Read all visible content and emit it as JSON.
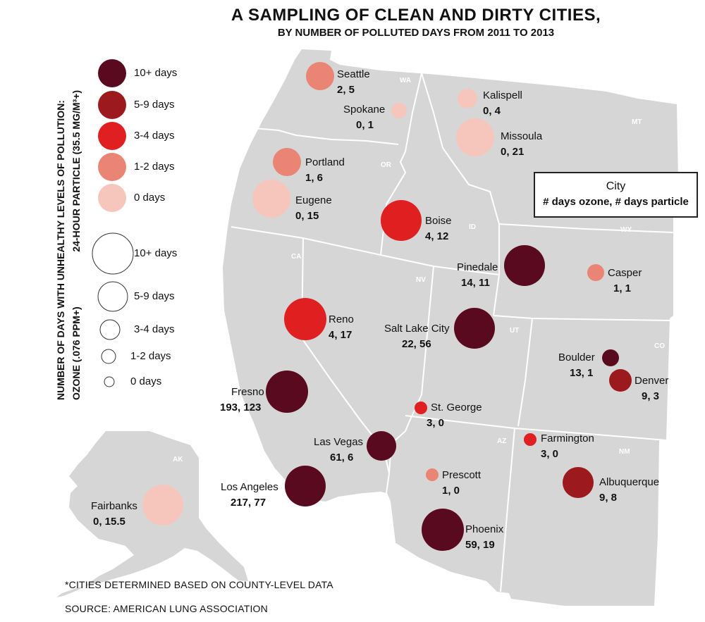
{
  "title": "A SAMPLING OF CLEAN AND DIRTY CITIES,",
  "subtitle": "BY NUMBER OF POLLUTED DAYS FROM 2011 TO 2013",
  "legend": {
    "axis_line_1": "NUMBER OF DAYS WITH UNHEALTHY LEVELS OF POLLUTION:",
    "axis_line_2": "OZONE (.076 PPM+)                    24-HOUR PARTICLE (35.5 MG/M³+)",
    "ozone": [
      {
        "label": "10+ days",
        "color": "#5a0a1e"
      },
      {
        "label": "5-9 days",
        "color": "#9c1a1e"
      },
      {
        "label": "3-4 days",
        "color": "#e02020"
      },
      {
        "label": "1-2 days",
        "color": "#ea8474"
      },
      {
        "label": "0 days",
        "color": "#f6c6bd"
      }
    ],
    "particle": [
      {
        "label": "10+ days"
      },
      {
        "label": "5-9 days"
      },
      {
        "label": "3-4 days"
      },
      {
        "label": "1-2 days"
      },
      {
        "label": "0 days"
      }
    ]
  },
  "key": {
    "city": "City",
    "days": "# days ozone, # days particle"
  },
  "states": [
    "WA",
    "MT",
    "OR",
    "ID",
    "WY",
    "CA",
    "NV",
    "UT",
    "CO",
    "AZ",
    "NM",
    "AK"
  ],
  "cities": [
    {
      "name": "Seattle",
      "values": "2, 5",
      "ozone_days": 2,
      "particle_days": 5
    },
    {
      "name": "Spokane",
      "values": "0, 1",
      "ozone_days": 0,
      "particle_days": 1
    },
    {
      "name": "Kalispell",
      "values": "0, 4",
      "ozone_days": 0,
      "particle_days": 4
    },
    {
      "name": "Missoula",
      "values": "0, 21",
      "ozone_days": 0,
      "particle_days": 21
    },
    {
      "name": "Portland",
      "values": "1, 6",
      "ozone_days": 1,
      "particle_days": 6
    },
    {
      "name": "Eugene",
      "values": "0, 15",
      "ozone_days": 0,
      "particle_days": 15
    },
    {
      "name": "Boise",
      "values": "4, 12",
      "ozone_days": 4,
      "particle_days": 12
    },
    {
      "name": "Pinedale",
      "values": "14, 11",
      "ozone_days": 14,
      "particle_days": 11
    },
    {
      "name": "Casper",
      "values": "1, 1",
      "ozone_days": 1,
      "particle_days": 1
    },
    {
      "name": "Reno",
      "values": "4, 17",
      "ozone_days": 4,
      "particle_days": 17
    },
    {
      "name": "Salt Lake City",
      "values": "22, 56",
      "ozone_days": 22,
      "particle_days": 56
    },
    {
      "name": "Boulder",
      "values": "13, 1",
      "ozone_days": 13,
      "particle_days": 1
    },
    {
      "name": "Denver",
      "values": "9, 3",
      "ozone_days": 9,
      "particle_days": 3
    },
    {
      "name": "Fresno",
      "values": "193, 123",
      "ozone_days": 193,
      "particle_days": 123
    },
    {
      "name": "St. George",
      "values": "3, 0",
      "ozone_days": 3,
      "particle_days": 0
    },
    {
      "name": "Las Vegas",
      "values": "61, 6",
      "ozone_days": 61,
      "particle_days": 6
    },
    {
      "name": "Farmington",
      "values": "3, 0",
      "ozone_days": 3,
      "particle_days": 0
    },
    {
      "name": "Prescott",
      "values": "1, 0",
      "ozone_days": 1,
      "particle_days": 0
    },
    {
      "name": "Albuquerque",
      "values": "9, 8",
      "ozone_days": 9,
      "particle_days": 8
    },
    {
      "name": "Los Angeles",
      "values": "217, 77",
      "ozone_days": 217,
      "particle_days": 77
    },
    {
      "name": "Phoenix",
      "values": "59, 19",
      "ozone_days": 59,
      "particle_days": 19
    },
    {
      "name": "Fairbanks",
      "values": "0, 15.5",
      "ozone_days": 0,
      "particle_days": 15.5
    }
  ],
  "footnote": "*CITIES DETERMINED BASED ON COUNTY-LEVEL DATA",
  "source": "SOURCE: AMERICAN LUNG ASSOCIATION"
}
